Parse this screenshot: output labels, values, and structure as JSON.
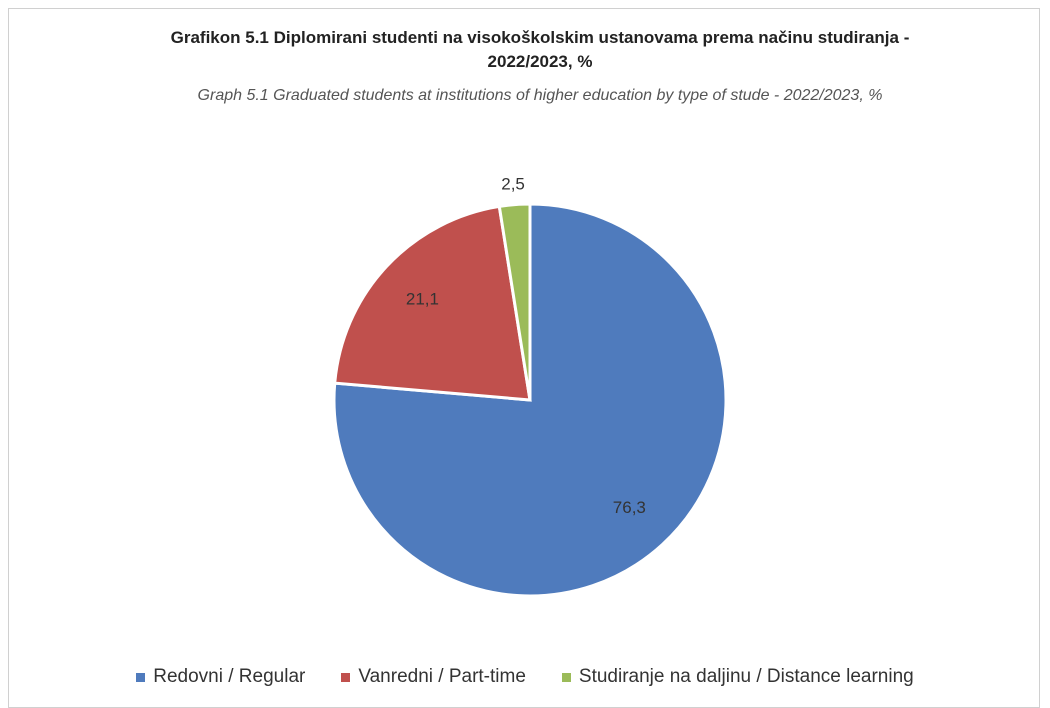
{
  "chart_data": {
    "type": "pie",
    "title": "Grafikon 5.1 Diplomirani studenti na visokoškolskim ustanovama prema načinu studiranja - 2022/2023, %",
    "subtitle": "Graph 5.1 Graduated students at institutions of higher education by type of stude - 2022/2023, %",
    "categories": [
      "Redovni / Regular",
      "Vanredni / Part-time",
      "Studiranje na daljinu / Distance learning"
    ],
    "values": [
      76.3,
      21.1,
      2.5
    ],
    "value_labels": [
      "76,3",
      "21,1",
      "2,5"
    ],
    "colors": [
      "#4f7bbd",
      "#c0504d",
      "#9bbb59"
    ]
  }
}
